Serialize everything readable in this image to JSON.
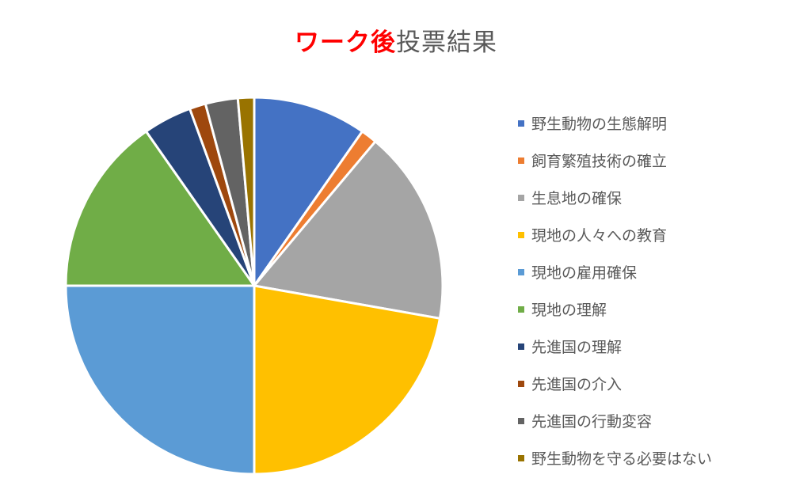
{
  "title": {
    "highlight": "ワーク後",
    "rest": "投票結果",
    "highlight_color": "#ff0000"
  },
  "chart_data": {
    "type": "pie",
    "title": "ワーク後投票結果",
    "legend_position": "right",
    "start_angle_deg": 0,
    "direction": "clockwise",
    "slices": [
      {
        "label": "野生動物の生態解明",
        "value": 7,
        "color": "#4472c4"
      },
      {
        "label": "飼育繁殖技術の確立",
        "value": 1,
        "color": "#ed7d31"
      },
      {
        "label": "生息地の確保",
        "value": 12,
        "color": "#a5a5a5"
      },
      {
        "label": "現地の人々への教育",
        "value": 16,
        "color": "#ffc000"
      },
      {
        "label": "現地の雇用確保",
        "value": 18,
        "color": "#5b9bd5"
      },
      {
        "label": "現地の理解",
        "value": 11,
        "color": "#70ad47"
      },
      {
        "label": "先進国の理解",
        "value": 3,
        "color": "#264478"
      },
      {
        "label": "先進国の介入",
        "value": 1,
        "color": "#9e480e"
      },
      {
        "label": "先進国の行動変容",
        "value": 2,
        "color": "#636363"
      },
      {
        "label": "野生動物を守る必要はない",
        "value": 1,
        "color": "#997300"
      }
    ],
    "categories": [
      "野生動物の生態解明",
      "飼育繁殖技術の確立",
      "生息地の確保",
      "現地の人々への教育",
      "現地の雇用確保",
      "現地の理解",
      "先進国の理解",
      "先進国の介入",
      "先進国の行動変容",
      "野生動物を守る必要はない"
    ],
    "values": [
      7,
      1,
      12,
      16,
      18,
      11,
      3,
      1,
      2,
      1
    ]
  }
}
